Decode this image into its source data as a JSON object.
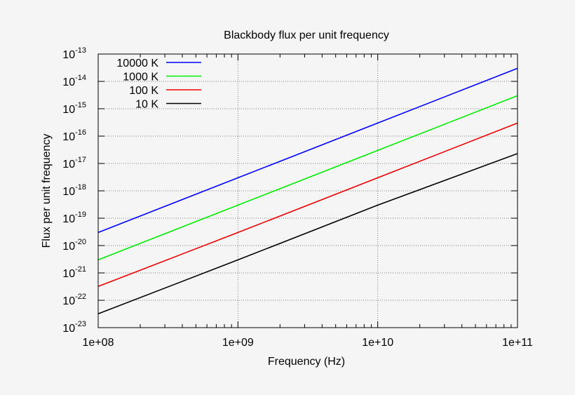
{
  "chart_data": {
    "type": "line",
    "title": "Blackbody flux per unit frequency",
    "xlabel": "Frequency (Hz)",
    "ylabel": "Flux per unit frequency",
    "x_scale": "log",
    "y_scale": "log",
    "xlim": [
      100000000,
      100000000000
    ],
    "ylim": [
      1e-23,
      1e-13
    ],
    "x_ticks": [
      {
        "value": 100000000,
        "label": "1e+08"
      },
      {
        "value": 1000000000,
        "label": "1e+09"
      },
      {
        "value": 10000000000,
        "label": "1e+10"
      },
      {
        "value": 100000000000,
        "label": "1e+11"
      }
    ],
    "y_ticks": [
      {
        "value": 1e-23,
        "base": "10",
        "exp": "-23"
      },
      {
        "value": 1e-22,
        "base": "10",
        "exp": "-22"
      },
      {
        "value": 1e-21,
        "base": "10",
        "exp": "-21"
      },
      {
        "value": 1e-20,
        "base": "10",
        "exp": "-20"
      },
      {
        "value": 1e-19,
        "base": "10",
        "exp": "-19"
      },
      {
        "value": 1e-18,
        "base": "10",
        "exp": "-18"
      },
      {
        "value": 1e-17,
        "base": "10",
        "exp": "-17"
      },
      {
        "value": 1e-16,
        "base": "10",
        "exp": "-16"
      },
      {
        "value": 1e-15,
        "base": "10",
        "exp": "-15"
      },
      {
        "value": 1e-14,
        "base": "10",
        "exp": "-14"
      },
      {
        "value": 1e-13,
        "base": "10",
        "exp": "-13"
      }
    ],
    "grid": true,
    "legend_position": "top-left",
    "series": [
      {
        "name": "10000 K",
        "color": "#0000ff",
        "x": [
          100000000,
          1000000000,
          10000000000,
          100000000000
        ],
        "y": [
          3e-20,
          3e-18,
          3e-16,
          3e-14
        ]
      },
      {
        "name": "1000 K",
        "color": "#00ee00",
        "x": [
          100000000,
          1000000000,
          10000000000,
          100000000000
        ],
        "y": [
          3e-21,
          3e-19,
          3e-17,
          3e-15
        ]
      },
      {
        "name": "100 K",
        "color": "#ee0000",
        "x": [
          100000000,
          1000000000,
          10000000000,
          100000000000
        ],
        "y": [
          3.2e-22,
          3e-20,
          3e-18,
          3e-16
        ]
      },
      {
        "name": "10 K",
        "color": "#000000",
        "x": [
          100000000,
          1000000000,
          10000000000,
          100000000000
        ],
        "y": [
          3.2e-23,
          3e-21,
          3e-19,
          2.3e-17
        ]
      }
    ]
  }
}
